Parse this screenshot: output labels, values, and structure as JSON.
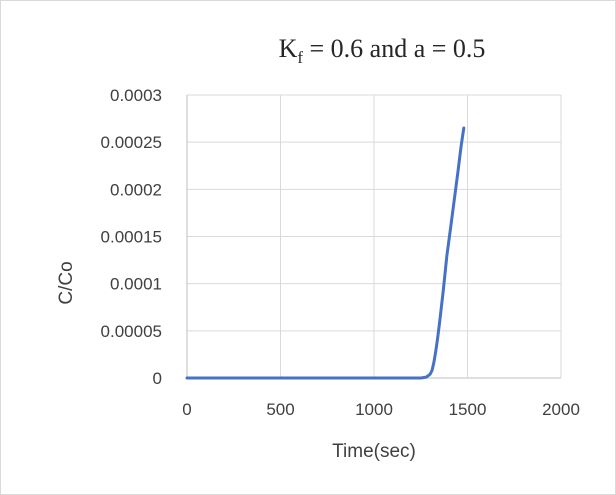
{
  "chart_data": {
    "type": "line",
    "title": {
      "main": "K",
      "subscript": "f",
      "rest": " = 0.6 and a = 0.5"
    },
    "xlabel": "Time(sec)",
    "ylabel": "C/Co",
    "xlim": [
      0,
      2000
    ],
    "ylim": [
      0,
      0.0003
    ],
    "x_ticks": [
      0,
      500,
      1000,
      1500,
      2000
    ],
    "x_tick_labels": [
      "0",
      "500",
      "1000",
      "1500",
      "2000"
    ],
    "y_ticks": [
      0,
      5e-05,
      0.0001,
      0.00015,
      0.0002,
      0.00025,
      0.0003
    ],
    "y_tick_labels": [
      "0",
      "0.00005",
      "0.0001",
      "0.00015",
      "0.0002",
      "0.00025",
      "0.0003"
    ],
    "grid": true,
    "legend": "none",
    "series": [
      {
        "color": "#4472c4",
        "x": [
          0,
          500,
          1000,
          1250,
          1280,
          1300,
          1310,
          1320,
          1330,
          1340,
          1350,
          1370,
          1390,
          1410,
          1430,
          1450,
          1465,
          1480
        ],
        "y": [
          0,
          0,
          0,
          0,
          1e-06,
          4e-06,
          8e-06,
          1.6e-05,
          2.8e-05,
          4.2e-05,
          5.8e-05,
          9.2e-05,
          0.00013,
          0.00016,
          0.00019,
          0.00022,
          0.000245,
          0.000265
        ]
      }
    ]
  }
}
